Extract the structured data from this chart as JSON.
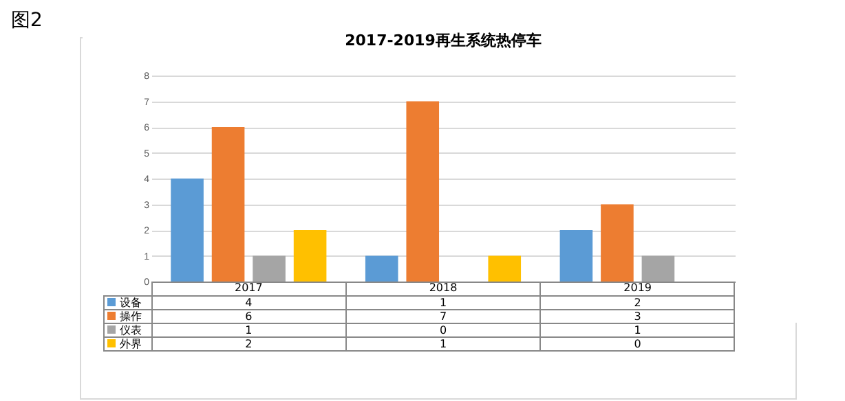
{
  "chart_data": {
    "type": "bar",
    "title": "2017-2019再生系统热停车",
    "annotations": [
      "图2"
    ],
    "categories": [
      "2017",
      "2018",
      "2019"
    ],
    "series": [
      {
        "name": "设备",
        "color": "#5b9bd5",
        "values": [
          4,
          1,
          2
        ]
      },
      {
        "name": "操作",
        "color": "#ed7d31",
        "values": [
          6,
          7,
          3
        ]
      },
      {
        "name": "仪表",
        "color": "#a5a5a5",
        "values": [
          1,
          0,
          1
        ]
      },
      {
        "name": "外界",
        "color": "#ffc000",
        "values": [
          2,
          1,
          0
        ]
      }
    ],
    "ylim": [
      0,
      8
    ],
    "yticks": [
      0,
      1,
      2,
      3,
      4,
      5,
      6,
      7,
      8
    ],
    "grid": "y",
    "legend": "bottom",
    "data_labels": true
  }
}
